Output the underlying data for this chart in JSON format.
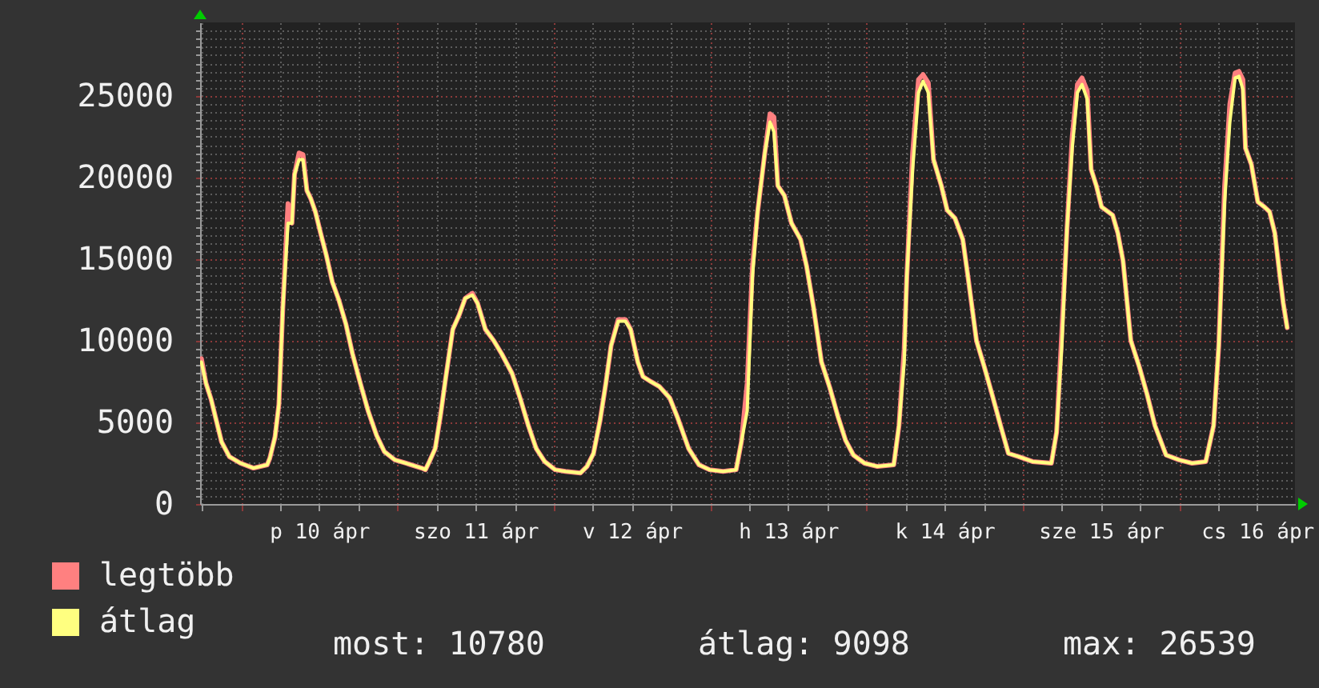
{
  "chart_data": {
    "type": "line",
    "x": [
      "--04-09T17:54",
      "--04-09T18:36",
      "--04-09T19:24",
      "--04-09T20:12",
      "--04-09T21:00",
      "--04-09T22:12",
      "--04-09T23:54",
      "--04-10T01:54",
      "--04-10T04:00",
      "--04-10T04:24",
      "--04-10T05:12",
      "--04-10T05:48",
      "--04-10T06:24",
      "--04-10T07:12",
      "--04-10T07:48",
      "--04-10T08:12",
      "--04-10T08:54",
      "--04-10T09:30",
      "--04-10T10:06",
      "--04-10T10:42",
      "--04-10T11:24",
      "--04-10T12:12",
      "--04-10T13:06",
      "--04-10T14:00",
      "--04-10T15:00",
      "--04-10T16:06",
      "--04-10T17:06",
      "--04-10T18:18",
      "--04-10T19:30",
      "--04-10T20:48",
      "--04-10T22:00",
      "--04-10T23:36",
      "--04-11T01:18",
      "--04-11T03:42",
      "--04-11T04:18",
      "--04-11T04:54",
      "--04-11T05:48",
      "--04-11T06:36",
      "--04-11T07:24",
      "--04-11T08:30",
      "--04-11T09:30",
      "--04-11T10:24",
      "--04-11T11:30",
      "--04-11T12:18",
      "--04-11T13:30",
      "--04-11T14:48",
      "--04-11T16:00",
      "--04-11T17:36",
      "--04-11T18:54",
      "--04-11T20:06",
      "--04-11T21:18",
      "--04-11T22:36",
      "--04-12T00:12",
      "--04-12T01:48",
      "--04-12T04:06",
      "--04-12T05:06",
      "--04-12T06:06",
      "--04-12T07:06",
      "--04-12T08:00",
      "--04-12T08:48",
      "--04-12T09:54",
      "--04-12T11:00",
      "--04-12T11:48",
      "--04-12T12:54",
      "--04-12T13:42",
      "--04-12T14:54",
      "--04-12T16:12",
      "--04-12T17:48",
      "--04-12T19:00",
      "--04-12T20:42",
      "--04-12T22:18",
      "--04-12T23:54",
      "--04-13T02:00",
      "--04-13T04:00",
      "--04-13T04:48",
      "--04-13T05:42",
      "--04-13T06:30",
      "--04-13T07:18",
      "--04-13T08:24",
      "--04-13T09:12",
      "--04-13T09:48",
      "--04-13T10:24",
      "--04-13T11:24",
      "--04-13T12:30",
      "--04-13T13:54",
      "--04-13T14:48",
      "--04-13T15:54",
      "--04-13T17:06",
      "--04-13T18:24",
      "--04-13T19:36",
      "--04-13T20:48",
      "--04-13T22:00",
      "--04-13T23:42",
      "--04-14T01:42",
      "--04-14T04:12",
      "--04-14T05:00",
      "--04-14T05:48",
      "--04-14T06:12",
      "--04-14T07:06",
      "--04-14T08:00",
      "--04-14T08:42",
      "--04-14T09:30",
      "--04-14T10:18",
      "--04-14T11:30",
      "--04-14T12:24",
      "--04-14T13:36",
      "--04-14T14:48",
      "--04-14T15:36",
      "--04-14T16:54",
      "--04-14T18:06",
      "--04-14T19:18",
      "--04-14T20:36",
      "--04-14T21:48",
      "--04-14T23:24",
      "--04-15T01:30",
      "--04-15T04:24",
      "--04-15T05:12",
      "--04-15T06:00",
      "--04-15T06:48",
      "--04-15T07:36",
      "--04-15T08:24",
      "--04-15T09:06",
      "--04-15T09:54",
      "--04-15T10:30",
      "--04-15T11:18",
      "--04-15T12:06",
      "--04-15T13:48",
      "--04-15T14:36",
      "--04-15T15:24",
      "--04-15T16:36",
      "--04-15T17:54",
      "--04-15T19:06",
      "--04-15T20:18",
      "--04-15T22:00",
      "--04-16T00:00",
      "--04-16T02:00",
      "--04-16T04:06",
      "--04-16T05:18",
      "--04-16T06:06",
      "--04-16T07:00",
      "--04-16T07:48",
      "--04-16T08:36",
      "--04-16T09:12",
      "--04-16T09:48",
      "--04-16T10:12",
      "--04-16T11:06",
      "--04-16T12:06",
      "--04-16T13:06",
      "--04-16T13:54",
      "--04-16T14:42",
      "--04-16T15:30",
      "--04-16T16:00",
      "--04-16T16:36"
    ],
    "xlim": [
      "--04-09T17:42",
      "--04-16T17:48"
    ],
    "xticks": [
      {
        "value": "--04-09T18:00",
        "label": null
      },
      {
        "value": "--04-10T00:00",
        "label": null
      },
      {
        "value": "--04-10T06:00",
        "label": null
      },
      {
        "value": "--04-10T12:00",
        "label": "p 10 ápr"
      },
      {
        "value": "--04-10T18:00",
        "label": null
      },
      {
        "value": "--04-11T00:00",
        "label": null
      },
      {
        "value": "--04-11T06:00",
        "label": null
      },
      {
        "value": "--04-11T12:00",
        "label": "szo 11 ápr"
      },
      {
        "value": "--04-11T18:00",
        "label": null
      },
      {
        "value": "--04-12T00:00",
        "label": null
      },
      {
        "value": "--04-12T06:00",
        "label": null
      },
      {
        "value": "--04-12T12:00",
        "label": "v 12 ápr"
      },
      {
        "value": "--04-12T18:00",
        "label": null
      },
      {
        "value": "--04-13T00:00",
        "label": null
      },
      {
        "value": "--04-13T06:00",
        "label": null
      },
      {
        "value": "--04-13T12:00",
        "label": "h 13 ápr"
      },
      {
        "value": "--04-13T18:00",
        "label": null
      },
      {
        "value": "--04-14T00:00",
        "label": null
      },
      {
        "value": "--04-14T06:00",
        "label": null
      },
      {
        "value": "--04-14T12:00",
        "label": "k 14 ápr"
      },
      {
        "value": "--04-14T18:00",
        "label": null
      },
      {
        "value": "--04-15T00:00",
        "label": null
      },
      {
        "value": "--04-15T06:00",
        "label": null
      },
      {
        "value": "--04-15T12:00",
        "label": "sze 15 ápr"
      },
      {
        "value": "--04-15T18:00",
        "label": null
      },
      {
        "value": "--04-16T00:00",
        "label": null
      },
      {
        "value": "--04-16T06:00",
        "label": null
      },
      {
        "value": "--04-16T12:00",
        "label": "cs 16 ápr"
      }
    ],
    "ylim": [
      0,
      29500
    ],
    "yticks": [
      0,
      {
        "value": 500,
        "label": null
      },
      {
        "value": 1000,
        "label": null
      },
      {
        "value": 1500,
        "label": null
      },
      {
        "value": 2000,
        "label": null
      },
      {
        "value": 2500,
        "label": null
      },
      {
        "value": 3000,
        "label": null
      },
      {
        "value": 3500,
        "label": null
      },
      {
        "value": 4000,
        "label": null
      },
      {
        "value": 4500,
        "label": null
      },
      5000,
      {
        "value": 5500,
        "label": null
      },
      {
        "value": 6000,
        "label": null
      },
      {
        "value": 6500,
        "label": null
      },
      {
        "value": 7000,
        "label": null
      },
      {
        "value": 7500,
        "label": null
      },
      {
        "value": 8000,
        "label": null
      },
      {
        "value": 8500,
        "label": null
      },
      {
        "value": 9000,
        "label": null
      },
      {
        "value": 9500,
        "label": null
      },
      10000,
      {
        "value": 10500,
        "label": null
      },
      {
        "value": 11000,
        "label": null
      },
      {
        "value": 11500,
        "label": null
      },
      {
        "value": 12000,
        "label": null
      },
      {
        "value": 12500,
        "label": null
      },
      {
        "value": 13000,
        "label": null
      },
      {
        "value": 13500,
        "label": null
      },
      {
        "value": 14000,
        "label": null
      },
      {
        "value": 14500,
        "label": null
      },
      15000,
      {
        "value": 15500,
        "label": null
      },
      {
        "value": 16000,
        "label": null
      },
      {
        "value": 16500,
        "label": null
      },
      {
        "value": 17000,
        "label": null
      },
      {
        "value": 17500,
        "label": null
      },
      {
        "value": 18000,
        "label": null
      },
      {
        "value": 18500,
        "label": null
      },
      {
        "value": 19000,
        "label": null
      },
      {
        "value": 19500,
        "label": null
      },
      20000,
      {
        "value": 20500,
        "label": null
      },
      {
        "value": 21000,
        "label": null
      },
      {
        "value": 21500,
        "label": null
      },
      {
        "value": 22000,
        "label": null
      },
      {
        "value": 22500,
        "label": null
      },
      {
        "value": 23000,
        "label": null
      },
      {
        "value": 23500,
        "label": null
      },
      {
        "value": 24000,
        "label": null
      },
      {
        "value": 24500,
        "label": null
      },
      25000,
      {
        "value": 25500,
        "label": null
      },
      {
        "value": 26000,
        "label": null
      },
      {
        "value": 26500,
        "label": null
      },
      {
        "value": 27000,
        "label": null
      },
      {
        "value": 27500,
        "label": null
      },
      {
        "value": 28000,
        "label": null
      },
      {
        "value": 28500,
        "label": null
      },
      {
        "value": 29000,
        "label": null
      }
    ],
    "grid": true,
    "legend": "bottom left",
    "series": [
      {
        "name": "legtöbb",
        "color": "#ff8080",
        "values": [
          8900,
          7400,
          6400,
          5100,
          3800,
          2900,
          2500,
          2200,
          2400,
          2800,
          4100,
          6100,
          12000,
          18400,
          17200,
          20200,
          21500,
          21400,
          19200,
          18700,
          17900,
          16600,
          15200,
          13600,
          12500,
          11000,
          9200,
          7400,
          5700,
          4200,
          3200,
          2700,
          2500,
          2200,
          2100,
          2600,
          3400,
          5400,
          7700,
          10700,
          11600,
          12600,
          12900,
          12300,
          10700,
          10000,
          9200,
          8000,
          6400,
          4800,
          3400,
          2600,
          2100,
          2000,
          1900,
          2300,
          3100,
          5100,
          7400,
          9700,
          11300,
          11300,
          10700,
          8700,
          7800,
          7500,
          7200,
          6500,
          5300,
          3400,
          2400,
          2100,
          2000,
          2100,
          3800,
          7400,
          14500,
          17900,
          21500,
          23900,
          23700,
          19500,
          18900,
          17200,
          16200,
          14600,
          12000,
          8700,
          7100,
          5400,
          3900,
          3000,
          2500,
          2300,
          2400,
          4800,
          9500,
          13900,
          21500,
          26000,
          26300,
          25800,
          21100,
          19500,
          18000,
          17500,
          16200,
          13900,
          10000,
          8400,
          6700,
          4800,
          3100,
          2900,
          2600,
          2500,
          4400,
          10500,
          16900,
          22500,
          25700,
          26100,
          25300,
          20500,
          19500,
          18200,
          17700,
          16600,
          14900,
          10000,
          8400,
          6700,
          4800,
          3000,
          2700,
          2500,
          2600,
          4800,
          9700,
          19500,
          24500,
          26400,
          26500,
          26000,
          21800,
          20800,
          18500,
          18200,
          17900,
          16600,
          13900,
          12300,
          10800
        ]
      },
      {
        "name": "átlag",
        "color": "#ffff80",
        "values": [
          8700,
          7400,
          6400,
          5100,
          3800,
          2900,
          2500,
          2200,
          2400,
          2800,
          4100,
          6100,
          12000,
          17200,
          17200,
          20200,
          21100,
          21100,
          19200,
          18700,
          17900,
          16600,
          15200,
          13600,
          12500,
          11000,
          9200,
          7400,
          5700,
          4200,
          3200,
          2700,
          2500,
          2200,
          2100,
          2600,
          3400,
          5400,
          7700,
          10700,
          11600,
          12600,
          12800,
          12300,
          10700,
          10000,
          9200,
          8000,
          6400,
          4800,
          3400,
          2600,
          2100,
          2000,
          1900,
          2300,
          3100,
          5100,
          7400,
          9700,
          11200,
          11200,
          10700,
          8700,
          7800,
          7500,
          7200,
          6500,
          5300,
          3400,
          2400,
          2100,
          2000,
          2100,
          3800,
          5700,
          13900,
          17900,
          21500,
          23400,
          22800,
          19500,
          18900,
          17200,
          16200,
          14600,
          12000,
          8700,
          7100,
          5400,
          3900,
          3000,
          2500,
          2300,
          2400,
          4800,
          8700,
          13900,
          20500,
          25200,
          25900,
          25200,
          21100,
          19500,
          18000,
          17500,
          16200,
          13900,
          10000,
          8400,
          6700,
          4800,
          3100,
          2900,
          2600,
          2500,
          4400,
          9700,
          16900,
          21800,
          25200,
          25700,
          24800,
          20500,
          19500,
          18200,
          17700,
          16600,
          14900,
          10000,
          8400,
          6700,
          4800,
          3000,
          2700,
          2500,
          2600,
          4800,
          9700,
          18500,
          23400,
          26100,
          26200,
          25400,
          21800,
          20800,
          18500,
          18200,
          17900,
          16600,
          13900,
          12300,
          10800
        ]
      }
    ],
    "annotations": [
      "most: 10780",
      "átlag: 9098",
      "max: 26539"
    ]
  }
}
